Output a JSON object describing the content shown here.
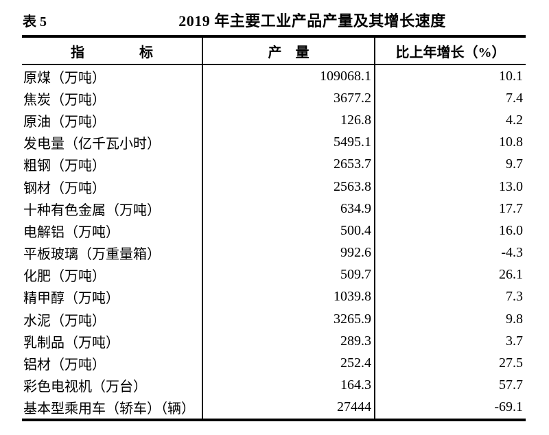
{
  "page": {
    "table_label": "表 5",
    "title": "2019 年主要工业产品产量及其增长速度"
  },
  "table": {
    "columns": [
      {
        "key": "indicator",
        "label": "指　　　　标"
      },
      {
        "key": "output",
        "label": "产　量"
      },
      {
        "key": "growth",
        "label": "比上年增长（%）"
      }
    ],
    "rows": [
      {
        "indicator": "原煤（万吨）",
        "output": "109068.1",
        "growth": "10.1"
      },
      {
        "indicator": "焦炭（万吨）",
        "output": "3677.2",
        "growth": "7.4"
      },
      {
        "indicator": "原油（万吨）",
        "output": "126.8",
        "growth": "4.2"
      },
      {
        "indicator": "发电量（亿千瓦小时）",
        "output": "5495.1",
        "growth": "10.8"
      },
      {
        "indicator": "粗钢（万吨）",
        "output": "2653.7",
        "growth": "9.7"
      },
      {
        "indicator": "钢材（万吨）",
        "output": "2563.8",
        "growth": "13.0"
      },
      {
        "indicator": "十种有色金属（万吨）",
        "output": "634.9",
        "growth": "17.7"
      },
      {
        "indicator": "电解铝（万吨）",
        "output": "500.4",
        "growth": "16.0"
      },
      {
        "indicator": "平板玻璃（万重量箱）",
        "output": "992.6",
        "growth": "-4.3"
      },
      {
        "indicator": "化肥（万吨）",
        "output": "509.7",
        "growth": "26.1"
      },
      {
        "indicator": "精甲醇（万吨）",
        "output": "1039.8",
        "growth": "7.3"
      },
      {
        "indicator": "水泥（万吨）",
        "output": "3265.9",
        "growth": "9.8"
      },
      {
        "indicator": "乳制品（万吨）",
        "output": "289.3",
        "growth": "3.7"
      },
      {
        "indicator": "铝材（万吨）",
        "output": "252.4",
        "growth": "27.5"
      },
      {
        "indicator": "彩色电视机（万台）",
        "output": "164.3",
        "growth": "57.7"
      },
      {
        "indicator": "基本型乘用车（轿车）（辆）",
        "output": "27444",
        "growth": "-69.1"
      }
    ]
  },
  "colors": {
    "text": "#000000",
    "border": "#000000",
    "background": "#ffffff"
  }
}
